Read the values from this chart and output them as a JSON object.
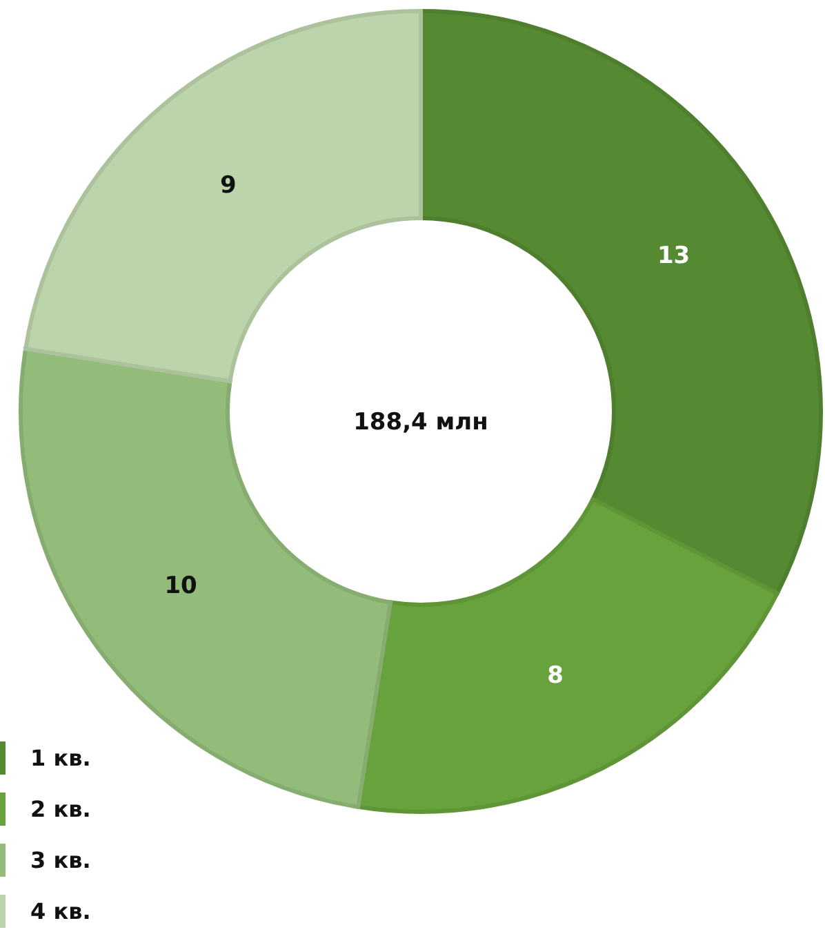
{
  "chart_data": {
    "type": "donut",
    "categories": [
      "1 кв.",
      "2 кв.",
      "3 кв.",
      "4 кв."
    ],
    "values": [
      13,
      8,
      10,
      9
    ],
    "colors": [
      "#558a32",
      "#68a23c",
      "#93bc7a",
      "#bcd4ab"
    ],
    "data_labels": true,
    "legend": "bottom left",
    "annotations": [
      "188,4 млн"
    ]
  }
}
